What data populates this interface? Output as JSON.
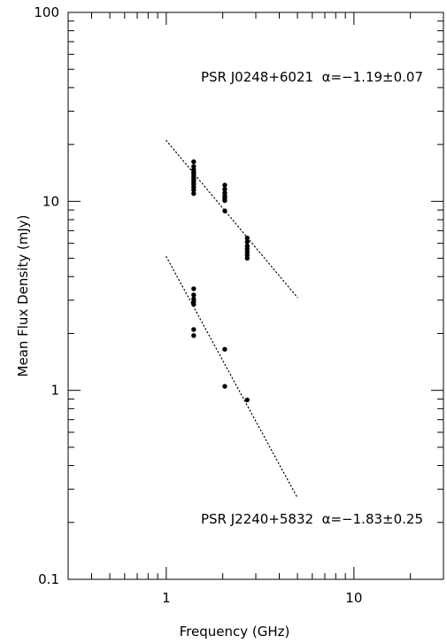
{
  "chart_data": {
    "type": "scatter",
    "xlabel": "Frequency (GHz)",
    "ylabel": "Mean Flux Density (mJy)",
    "xscale": "log",
    "yscale": "log",
    "xlim": [
      0.3,
      30
    ],
    "ylim": [
      0.1,
      100
    ],
    "x_tick_labels": [
      {
        "value": 1,
        "label": "1"
      },
      {
        "value": 10,
        "label": "10"
      }
    ],
    "y_tick_labels": [
      {
        "value": 0.1,
        "label": "0.1"
      },
      {
        "value": 1,
        "label": "1"
      },
      {
        "value": 10,
        "label": "10"
      },
      {
        "value": 100,
        "label": "100"
      }
    ],
    "grid": false,
    "series": [
      {
        "name": "PSR J0248+6021",
        "annotation": "PSR J0248+6021  α=−1.19±0.07",
        "points": [
          [
            1.4,
            16.2
          ],
          [
            1.4,
            15.3
          ],
          [
            1.4,
            14.7
          ],
          [
            1.4,
            14.3
          ],
          [
            1.4,
            14.0
          ],
          [
            1.4,
            13.6
          ],
          [
            1.4,
            13.2
          ],
          [
            1.4,
            12.9
          ],
          [
            1.4,
            12.6
          ],
          [
            1.4,
            12.3
          ],
          [
            1.4,
            11.9
          ],
          [
            1.4,
            11.5
          ],
          [
            1.4,
            11.0
          ],
          [
            2.05,
            12.2
          ],
          [
            2.05,
            11.6
          ],
          [
            2.05,
            11.1
          ],
          [
            2.05,
            10.7
          ],
          [
            2.05,
            10.4
          ],
          [
            2.05,
            10.1
          ],
          [
            2.05,
            8.9
          ],
          [
            2.7,
            6.4
          ],
          [
            2.7,
            6.1
          ],
          [
            2.7,
            5.8
          ],
          [
            2.7,
            5.6
          ],
          [
            2.7,
            5.4
          ],
          [
            2.7,
            5.2
          ],
          [
            2.7,
            5.0
          ]
        ],
        "fit": {
          "x": [
            1,
            5
          ],
          "y": [
            21,
            3.1
          ]
        }
      },
      {
        "name": "PSR J2240+5832",
        "annotation": "PSR J2240+5832  α=−1.83±0.25",
        "points": [
          [
            1.4,
            3.45
          ],
          [
            1.4,
            3.2
          ],
          [
            1.4,
            3.05
          ],
          [
            1.4,
            2.95
          ],
          [
            1.4,
            2.85
          ],
          [
            1.4,
            2.1
          ],
          [
            1.4,
            1.95
          ],
          [
            2.05,
            1.65
          ],
          [
            2.05,
            1.05
          ],
          [
            2.7,
            0.89
          ]
        ],
        "fit": {
          "x": [
            1,
            5
          ],
          "y": [
            5.1,
            0.27
          ]
        }
      }
    ]
  }
}
